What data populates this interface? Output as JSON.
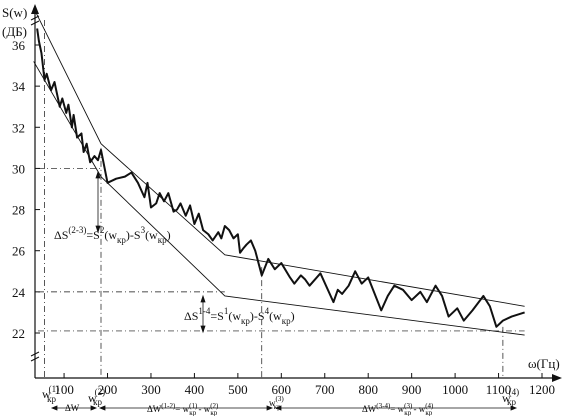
{
  "chart_data": {
    "type": "line",
    "ylabel_top": "S(w)",
    "ylabel_unit": "(ДБ)",
    "xlabel": "ω(Гц)",
    "xlim": [
      30,
      1200
    ],
    "ylim": [
      21.5,
      38
    ],
    "x_ticks": [
      "100",
      "200",
      "300",
      "400",
      "500",
      "600",
      "700",
      "800",
      "900",
      "1000",
      "1100",
      "1200"
    ],
    "x_tick_values": [
      100,
      200,
      300,
      400,
      500,
      600,
      700,
      800,
      900,
      1000,
      1100,
      1200
    ],
    "y_ticks": [
      "22",
      "24",
      "26",
      "28",
      "30",
      "32",
      "34",
      "36"
    ],
    "y_tick_values": [
      22,
      24,
      26,
      28,
      30,
      32,
      34,
      36
    ],
    "grid": false,
    "series": [
      {
        "x": [
          38,
          42,
          48,
          55,
          60,
          70,
          78,
          90,
          96,
          105,
          110,
          118,
          122,
          130,
          140,
          145,
          152,
          160,
          170,
          178,
          185,
          200,
          220,
          240,
          255,
          270,
          285,
          292,
          300,
          312,
          320,
          330,
          340,
          352,
          360,
          368,
          380,
          390,
          400,
          410,
          420,
          432,
          442,
          455,
          462,
          470,
          480,
          490,
          500,
          505,
          512,
          520,
          530,
          540,
          555,
          570,
          585,
          600,
          620,
          630,
          645,
          655,
          665,
          690,
          720,
          730,
          740,
          755,
          770,
          785,
          800,
          830,
          845,
          860,
          880,
          900,
          920,
          935,
          955,
          970,
          985,
          1005,
          1020,
          1040,
          1065,
          1080,
          1095,
          1110,
          1130,
          1160
        ],
        "values": [
          36.8,
          36.2,
          35.6,
          34.3,
          34.6,
          33.8,
          34.2,
          33.0,
          33.4,
          32.7,
          33.1,
          32.0,
          32.6,
          31.5,
          31.7,
          30.8,
          31.2,
          30.3,
          30.6,
          30.4,
          30.9,
          29.3,
          29.5,
          29.6,
          29.8,
          29.3,
          28.6,
          29.3,
          28.1,
          28.3,
          28.8,
          28.4,
          28.8,
          27.9,
          28.0,
          28.3,
          27.7,
          28.2,
          27.3,
          27.8,
          27.0,
          26.8,
          26.5,
          26.9,
          26.6,
          27.2,
          27.0,
          26.6,
          26.8,
          25.9,
          26.1,
          26.3,
          26.5,
          26.0,
          24.8,
          25.6,
          25.1,
          25.4,
          24.7,
          24.4,
          24.8,
          24.6,
          24.3,
          24.9,
          23.5,
          24.1,
          23.9,
          24.3,
          25.0,
          24.4,
          24.7,
          23.1,
          23.8,
          24.3,
          24.1,
          23.6,
          24.0,
          23.5,
          24.3,
          23.8,
          22.8,
          23.2,
          22.6,
          23.1,
          23.8,
          23.3,
          22.3,
          22.6,
          22.8,
          23.0
        ]
      }
    ],
    "envelope": {
      "upper": [
        [
          30,
          37.8
        ],
        [
          185,
          31.2
        ],
        [
          470,
          25.8
        ],
        [
          1160,
          23.3
        ]
      ],
      "lower": [
        [
          30,
          35.2
        ],
        [
          185,
          29.6
        ],
        [
          470,
          23.8
        ],
        [
          1160,
          21.9
        ]
      ]
    },
    "annotations": {
      "delta_s_23": {
        "lhs": "ΔS",
        "sup": "(2-3)",
        "eq1": "=S",
        "sup1": "2",
        "rhs1": "(w",
        "sub1": "кр",
        "mid": ")-S",
        "sup2": "3",
        "rhs2": "(w",
        "sub2": "кр",
        "end": ")"
      },
      "delta_s_14": {
        "lhs": "ΔS",
        "sup": "1-4",
        "eq1": "=S",
        "sup1": "1",
        "rhs1": "(w",
        "sub1": "кр",
        "mid": ")-S",
        "sup2": "4",
        "rhs2": "(w",
        "sub2": "кр",
        "end": ")"
      },
      "bottom_labels": [
        {
          "text": "w",
          "sub": "кр",
          "sup": "(1)"
        },
        {
          "text": "ΔW"
        },
        {
          "text": "w",
          "sub": "кр",
          "sup": "(2)"
        },
        {
          "text": "ΔW",
          "sup": "(1-2)",
          "eq": "= w",
          "sub1": "кр",
          "sup1": "(1)",
          "minus": " - w",
          "sub2": "кр",
          "sup2": "(2)"
        },
        {
          "text": "w",
          "sub": "кр",
          "sup": "(3)"
        },
        {
          "text": "ΔW",
          "sup": "(3-4)",
          "eq": "= w",
          "sub1": "кр",
          "sup1": "(3)",
          "minus": " - w",
          "sub2": "кр",
          "sup2": "(4)"
        },
        {
          "text": "w",
          "sub": "кр",
          "sup": "(4)"
        }
      ]
    }
  }
}
